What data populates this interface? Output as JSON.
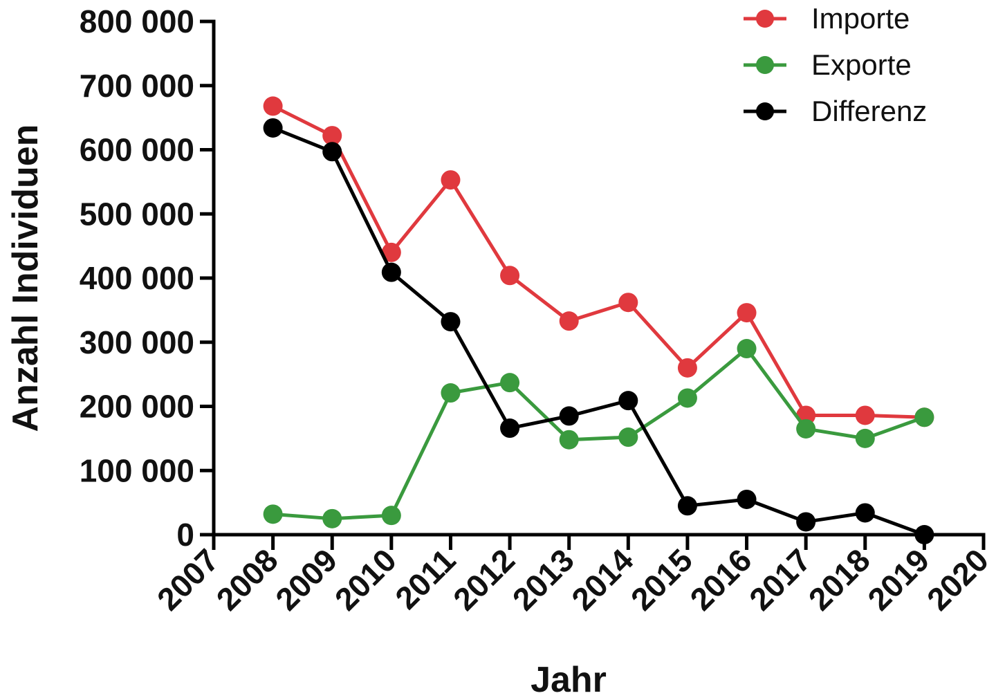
{
  "chart_data": {
    "type": "line",
    "xlabel": "Jahr",
    "ylabel": "Anzahl Individuen",
    "xlim": [
      2007,
      2020
    ],
    "ylim": [
      0,
      800000
    ],
    "x_ticks": [
      2007,
      2008,
      2009,
      2010,
      2011,
      2012,
      2013,
      2014,
      2015,
      2016,
      2017,
      2018,
      2019,
      2020
    ],
    "x_tick_labels": [
      "2007",
      "2008",
      "2009",
      "2010",
      "2011",
      "2012",
      "2013",
      "2014",
      "2015",
      "2016",
      "2017",
      "2018",
      "2019",
      "2020"
    ],
    "y_ticks": [
      0,
      100000,
      200000,
      300000,
      400000,
      500000,
      600000,
      700000,
      800000
    ],
    "y_tick_labels": [
      "0",
      "100 000",
      "200 000",
      "300 000",
      "400 000",
      "500 000",
      "600 000",
      "700 000",
      "800 000"
    ],
    "grid": false,
    "legend_position": "top-right",
    "x": [
      2008,
      2009,
      2010,
      2011,
      2012,
      2013,
      2014,
      2015,
      2016,
      2017,
      2018,
      2019
    ],
    "series": [
      {
        "name": "Importe",
        "color": "#e0393e",
        "values": [
          668000,
          622000,
          440000,
          553000,
          404000,
          333000,
          362000,
          260000,
          346000,
          186000,
          186000,
          183000
        ]
      },
      {
        "name": "Exporte",
        "color": "#3a9a3e",
        "values": [
          32000,
          25000,
          30000,
          221000,
          237000,
          148000,
          152000,
          213000,
          290000,
          165000,
          150000,
          183000
        ]
      },
      {
        "name": "Differenz",
        "color": "#000000",
        "values": [
          634000,
          597000,
          409000,
          332000,
          166000,
          185000,
          209000,
          45000,
          55000,
          20000,
          34000,
          0
        ]
      }
    ]
  }
}
